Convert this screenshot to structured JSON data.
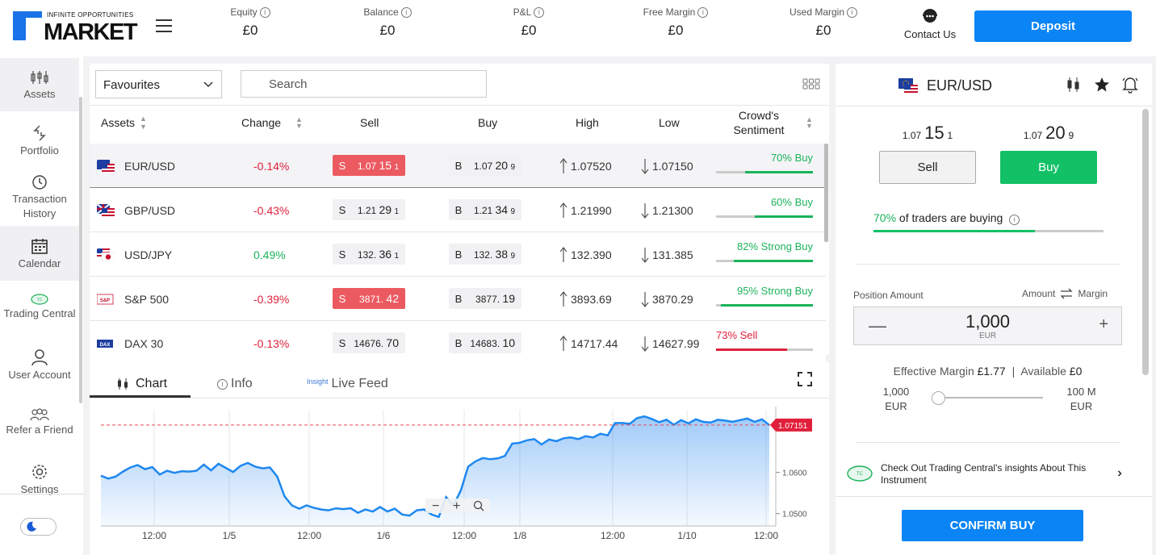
{
  "logo": {
    "tagline": "INFINITE OPPORTUNITIES",
    "name": "MARKET"
  },
  "stats": [
    {
      "label": "Equity",
      "value": "£0"
    },
    {
      "label": "Balance",
      "value": "£0"
    },
    {
      "label": "P&L",
      "value": "£0"
    },
    {
      "label": "Free Margin",
      "value": "£0"
    },
    {
      "label": "Used Margin",
      "value": "£0"
    }
  ],
  "contact_label": "Contact Us",
  "deposit_label": "Deposit",
  "sidebar": {
    "items": [
      {
        "label": "Assets",
        "icon": "assets-icon"
      },
      {
        "label": "Portfolio",
        "icon": "portfolio-icon"
      },
      {
        "label": "Transaction History",
        "icon": "history-icon"
      },
      {
        "label": "Calendar",
        "icon": "calendar-icon"
      },
      {
        "label": "Trading Central",
        "icon": "trading-central-icon"
      },
      {
        "label": "User Account",
        "icon": "user-icon"
      },
      {
        "label": "Refer a Friend",
        "icon": "refer-icon"
      },
      {
        "label": "Settings",
        "icon": "settings-icon"
      }
    ]
  },
  "filter": {
    "selected": "Favourites"
  },
  "search": {
    "placeholder": "Search"
  },
  "table": {
    "headers": {
      "assets": "Assets",
      "change": "Change",
      "sell": "Sell",
      "buy": "Buy",
      "high": "High",
      "low": "Low",
      "sentiment": "Crowd's Sentiment"
    },
    "rows": [
      {
        "name": "EUR/USD",
        "change": "-0.14%",
        "sell_pre": "1.07",
        "sell_big": "15",
        "sell_post": "1",
        "buy_pre": "1.07",
        "buy_big": "20",
        "buy_post": "9",
        "high": "1.07520",
        "low": "1.07150",
        "sentiment": "70% Buy",
        "sent_pct": 0.7,
        "sell_hl": true
      },
      {
        "name": "GBP/USD",
        "change": "-0.43%",
        "sell_pre": "1.21",
        "sell_big": "29",
        "sell_post": "1",
        "buy_pre": "1.21",
        "buy_big": "34",
        "buy_post": "9",
        "high": "1.21990",
        "low": "1.21300",
        "sentiment": "60% Buy",
        "sent_pct": 0.6,
        "sell_hl": false
      },
      {
        "name": "USD/JPY",
        "change": "0.49%",
        "sell_pre": "132.",
        "sell_big": "36",
        "sell_post": "1",
        "buy_pre": "132.",
        "buy_big": "38",
        "buy_post": "9",
        "high": "132.390",
        "low": "131.385",
        "sentiment": "82% Strong Buy",
        "sent_pct": 0.82,
        "sell_hl": false
      },
      {
        "name": "S&P 500",
        "change": "-0.39%",
        "sell_pre": "3871.",
        "sell_big": "42",
        "sell_post": "",
        "buy_pre": "3877.",
        "buy_big": "19",
        "buy_post": "",
        "high": "3893.69",
        "low": "3870.29",
        "sentiment": "95% Strong Buy",
        "sent_pct": 0.95,
        "sell_hl": true
      },
      {
        "name": "DAX 30",
        "change": "-0.13%",
        "sell_pre": "14676.",
        "sell_big": "70",
        "sell_post": "",
        "buy_pre": "14683.",
        "buy_big": "10",
        "buy_post": "",
        "high": "14717.44",
        "low": "14627.99",
        "sentiment": "73% Sell",
        "sent_pct": 0.73,
        "sell_hl": false
      }
    ],
    "sell_letter": "S",
    "buy_letter": "B"
  },
  "tabs": {
    "chart": "Chart",
    "info": "Info",
    "insight_tag": "Insight",
    "live_feed": "Live Feed"
  },
  "chart_data": {
    "type": "area",
    "x_ticks": [
      "12:00",
      "1/5",
      "12:00",
      "1/6",
      "12:00",
      "1/8",
      "12:00",
      "1/10",
      "12:00"
    ],
    "y_ticks": [
      "1.0600",
      "1.0500"
    ],
    "ylim": [
      1.047,
      1.076
    ],
    "current_price": "1.07151",
    "current_value": 1.07151,
    "values": [
      1.0592,
      1.0585,
      1.059,
      1.0602,
      1.0612,
      1.0618,
      1.0608,
      1.0613,
      1.0595,
      1.0604,
      1.0599,
      1.0603,
      1.0602,
      1.0604,
      1.0619,
      1.0605,
      1.0621,
      1.0611,
      1.0601,
      1.0616,
      1.0623,
      1.0614,
      1.061,
      1.0612,
      1.059,
      1.0542,
      1.052,
      1.0512,
      1.052,
      1.0514,
      1.051,
      1.0508,
      1.0513,
      1.0511,
      1.0513,
      1.0502,
      1.051,
      1.0505,
      1.0516,
      1.0505,
      1.0512,
      1.0498,
      1.0495,
      1.0508,
      1.051,
      1.0498,
      1.0492,
      1.054,
      1.052,
      1.0556,
      1.0614,
      1.0627,
      1.0635,
      1.0632,
      1.0634,
      1.064,
      1.067,
      1.0672,
      1.0678,
      1.0681,
      1.0668,
      1.068,
      1.0676,
      1.0683,
      1.0685,
      1.0681,
      1.0688,
      1.0685,
      1.0694,
      1.069,
      1.072,
      1.072,
      1.0718,
      1.0732,
      1.0736,
      1.073,
      1.0722,
      1.0728,
      1.0716,
      1.0727,
      1.0719,
      1.0729,
      1.0723,
      1.0721,
      1.0728,
      1.0726,
      1.0723,
      1.0727,
      1.0731,
      1.0723,
      1.0729,
      1.0715
    ]
  },
  "trade": {
    "symbol": "EUR/USD",
    "sell_pre": "1.07",
    "sell_big": "15",
    "sell_post": "1",
    "buy_pre": "1.07",
    "buy_big": "20",
    "buy_post": "9",
    "sell_label": "Sell",
    "buy_label": "Buy",
    "traders_pct": "70%",
    "traders_text": "of traders are buying",
    "position_label": "Position Amount",
    "amount_label": "Amount",
    "margin_label": "Margin",
    "amount_value": "1,000",
    "amount_ccy": "EUR",
    "effective_margin_label": "Effective Margin",
    "effective_margin_value": "£1.77",
    "separator": "|",
    "available_label": "Available",
    "available_value": "£0",
    "slider_min": "1,000",
    "slider_min_ccy": "EUR",
    "slider_max": "100 M",
    "slider_max_ccy": "EUR",
    "slider_level": 0,
    "insight_text": "Check Out Trading Central's insights About This Instrument",
    "confirm_label": "CONFIRM BUY"
  },
  "colors": {
    "accent": "#0b84f5",
    "buy": "#12c166",
    "sell": "#ec5a61",
    "negative": "#e0203a",
    "positive": "#1bb35a"
  }
}
